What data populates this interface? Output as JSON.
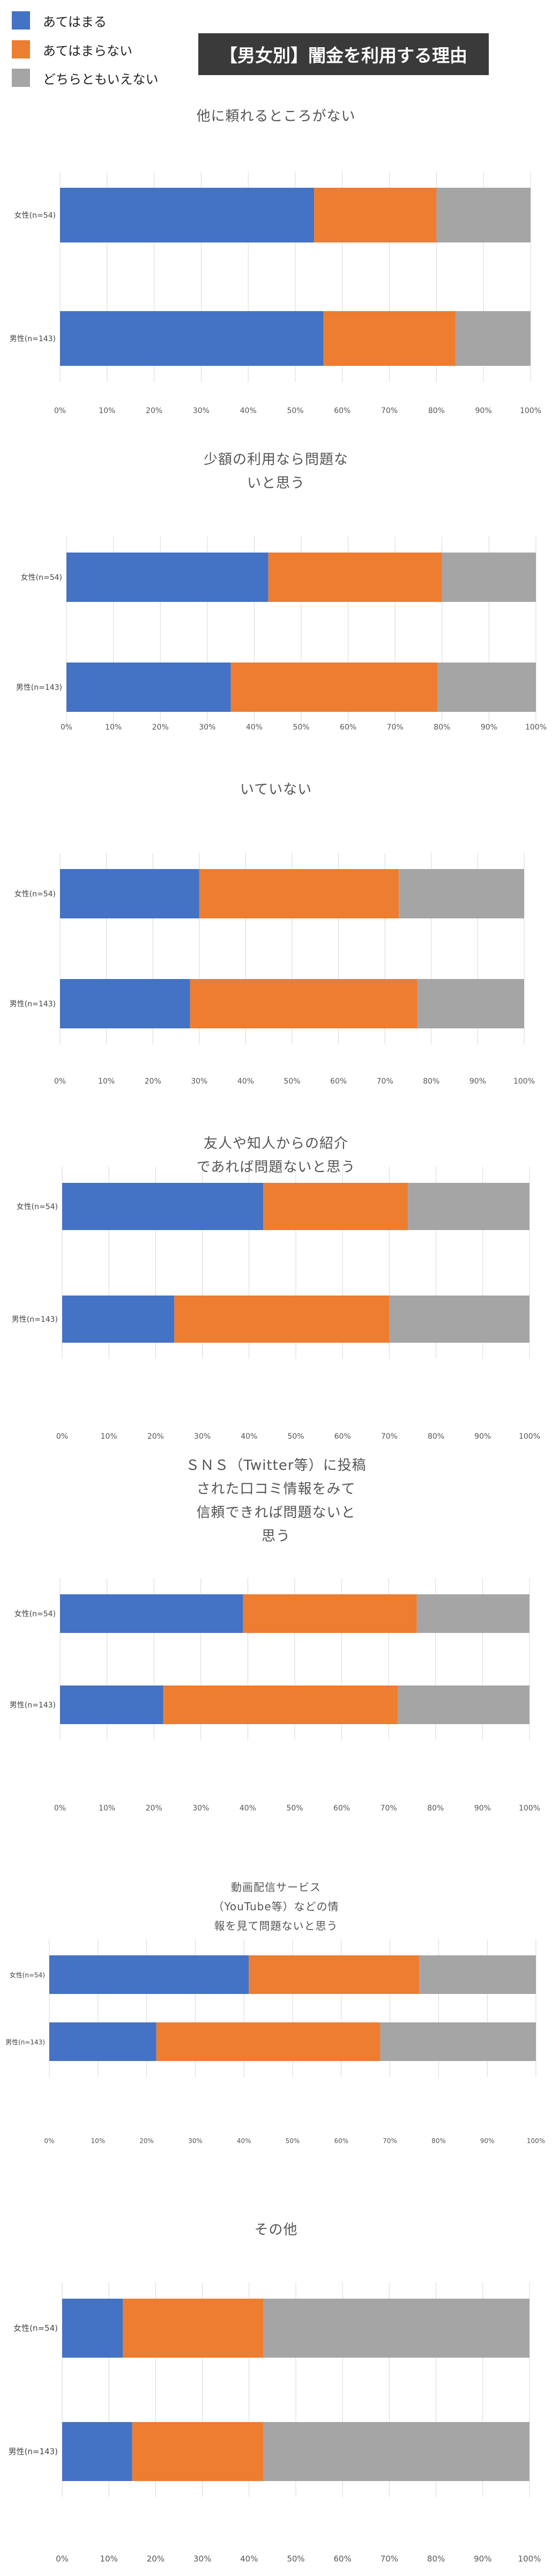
{
  "legend": [
    {
      "label": "あてはまる",
      "color": "#4472C4"
    },
    {
      "label": "あてはまらない",
      "color": "#ED7D31"
    },
    {
      "label": "どちらともいえない",
      "color": "#A5A5A5"
    }
  ],
  "page_title": "【男女別】闇金を利用する理由",
  "chart_data": [
    {
      "type": "bar",
      "stacked": true,
      "orientation": "horizontal",
      "title_lines": [
        "他に頼れるところがない"
      ],
      "categories": [
        "女性(n=54)",
        "男性(n=143)"
      ],
      "series": [
        {
          "name": "あてはまる",
          "values": [
            54,
            56
          ]
        },
        {
          "name": "あてはまらない",
          "values": [
            26,
            28
          ]
        },
        {
          "name": "どちらともいえない",
          "values": [
            20,
            16
          ]
        }
      ],
      "xticks": [
        "0%",
        "10%",
        "20%",
        "30%",
        "40%",
        "50%",
        "60%",
        "70%",
        "80%",
        "90%",
        "100%"
      ],
      "xlim": [
        0,
        100
      ]
    },
    {
      "type": "bar",
      "stacked": true,
      "orientation": "horizontal",
      "title_lines": [
        "少額の利用なら問題な",
        "いと思う"
      ],
      "categories": [
        "女性(n=54)",
        "男性(n=143)"
      ],
      "series": [
        {
          "name": "あてはまる",
          "values": [
            43,
            35
          ]
        },
        {
          "name": "あてはまらない",
          "values": [
            37,
            44
          ]
        },
        {
          "name": "どちらともいえない",
          "values": [
            20,
            21
          ]
        }
      ],
      "xticks": [
        "0%",
        "10%",
        "20%",
        "30%",
        "40%",
        "50%",
        "60%",
        "70%",
        "80%",
        "90%",
        "100%"
      ],
      "xlim": [
        0,
        100
      ]
    },
    {
      "type": "bar",
      "stacked": true,
      "orientation": "horizontal",
      "title_lines": [
        "いていない"
      ],
      "categories": [
        "女性(n=54)",
        "男性(n=143)"
      ],
      "series": [
        {
          "name": "あてはまる",
          "values": [
            30,
            28
          ]
        },
        {
          "name": "あてはまらない",
          "values": [
            43,
            49
          ]
        },
        {
          "name": "どちらともいえない",
          "values": [
            27,
            23
          ]
        }
      ],
      "xticks": [
        "0%",
        "10%",
        "20%",
        "30%",
        "40%",
        "50%",
        "60%",
        "70%",
        "80%",
        "90%",
        "100%"
      ],
      "xlim": [
        0,
        100
      ]
    },
    {
      "type": "bar",
      "stacked": true,
      "orientation": "horizontal",
      "title_lines": [
        "友人や知人からの紹介",
        "であれば問題ないと思う"
      ],
      "categories": [
        "女性(n=54)",
        "男性(n=143)"
      ],
      "series": [
        {
          "name": "あてはまる",
          "values": [
            43,
            24
          ]
        },
        {
          "name": "あてはまらない",
          "values": [
            31,
            46
          ]
        },
        {
          "name": "どちらともいえない",
          "values": [
            26,
            30
          ]
        }
      ],
      "xticks": [
        "0%",
        "10%",
        "20%",
        "30%",
        "40%",
        "50%",
        "60%",
        "70%",
        "80%",
        "90%",
        "100%"
      ],
      "xlim": [
        0,
        100
      ]
    },
    {
      "type": "bar",
      "stacked": true,
      "orientation": "horizontal",
      "title_lines": [
        "ＳＮＳ（Twitter等）に投稿",
        "された口コミ情報をみて",
        "信頼できれば問題ないと",
        "思う"
      ],
      "categories": [
        "女性(n=54)",
        "男性(n=143)"
      ],
      "series": [
        {
          "name": "あてはまる",
          "values": [
            39,
            22
          ]
        },
        {
          "name": "あてはまらない",
          "values": [
            37,
            50
          ]
        },
        {
          "name": "どちらともいえない",
          "values": [
            24,
            28
          ]
        }
      ],
      "xticks": [
        "0%",
        "10%",
        "20%",
        "30%",
        "40%",
        "50%",
        "60%",
        "70%",
        "80%",
        "90%",
        "100%"
      ],
      "xlim": [
        0,
        100
      ]
    },
    {
      "type": "bar",
      "stacked": true,
      "orientation": "horizontal",
      "title_lines": [
        "動画配信サービス",
        "（YouTube等）などの情",
        "報を見て問題ないと思う"
      ],
      "categories": [
        "女性(n=54)",
        "男性(n=143)"
      ],
      "series": [
        {
          "name": "あてはまる",
          "values": [
            41,
            22
          ]
        },
        {
          "name": "あてはまらない",
          "values": [
            35,
            46
          ]
        },
        {
          "name": "どちらともいえない",
          "values": [
            24,
            32
          ]
        }
      ],
      "xticks": [
        "0%",
        "10%",
        "20%",
        "30%",
        "40%",
        "50%",
        "60%",
        "70%",
        "80%",
        "90%",
        "100%"
      ],
      "xlim": [
        0,
        100
      ]
    },
    {
      "type": "bar",
      "stacked": true,
      "orientation": "horizontal",
      "title_lines": [
        "その他"
      ],
      "categories": [
        "女性(n=54)",
        "男性(n=143)"
      ],
      "series": [
        {
          "name": "あてはまる",
          "values": [
            13,
            15
          ]
        },
        {
          "name": "あてはまらない",
          "values": [
            30,
            28
          ]
        },
        {
          "name": "どちらともいえない",
          "values": [
            57,
            57
          ]
        }
      ],
      "xticks": [
        "0%",
        "10%",
        "20%",
        "30%",
        "40%",
        "50%",
        "60%",
        "70%",
        "80%",
        "90%",
        "100%"
      ],
      "xlim": [
        0,
        100
      ]
    }
  ]
}
